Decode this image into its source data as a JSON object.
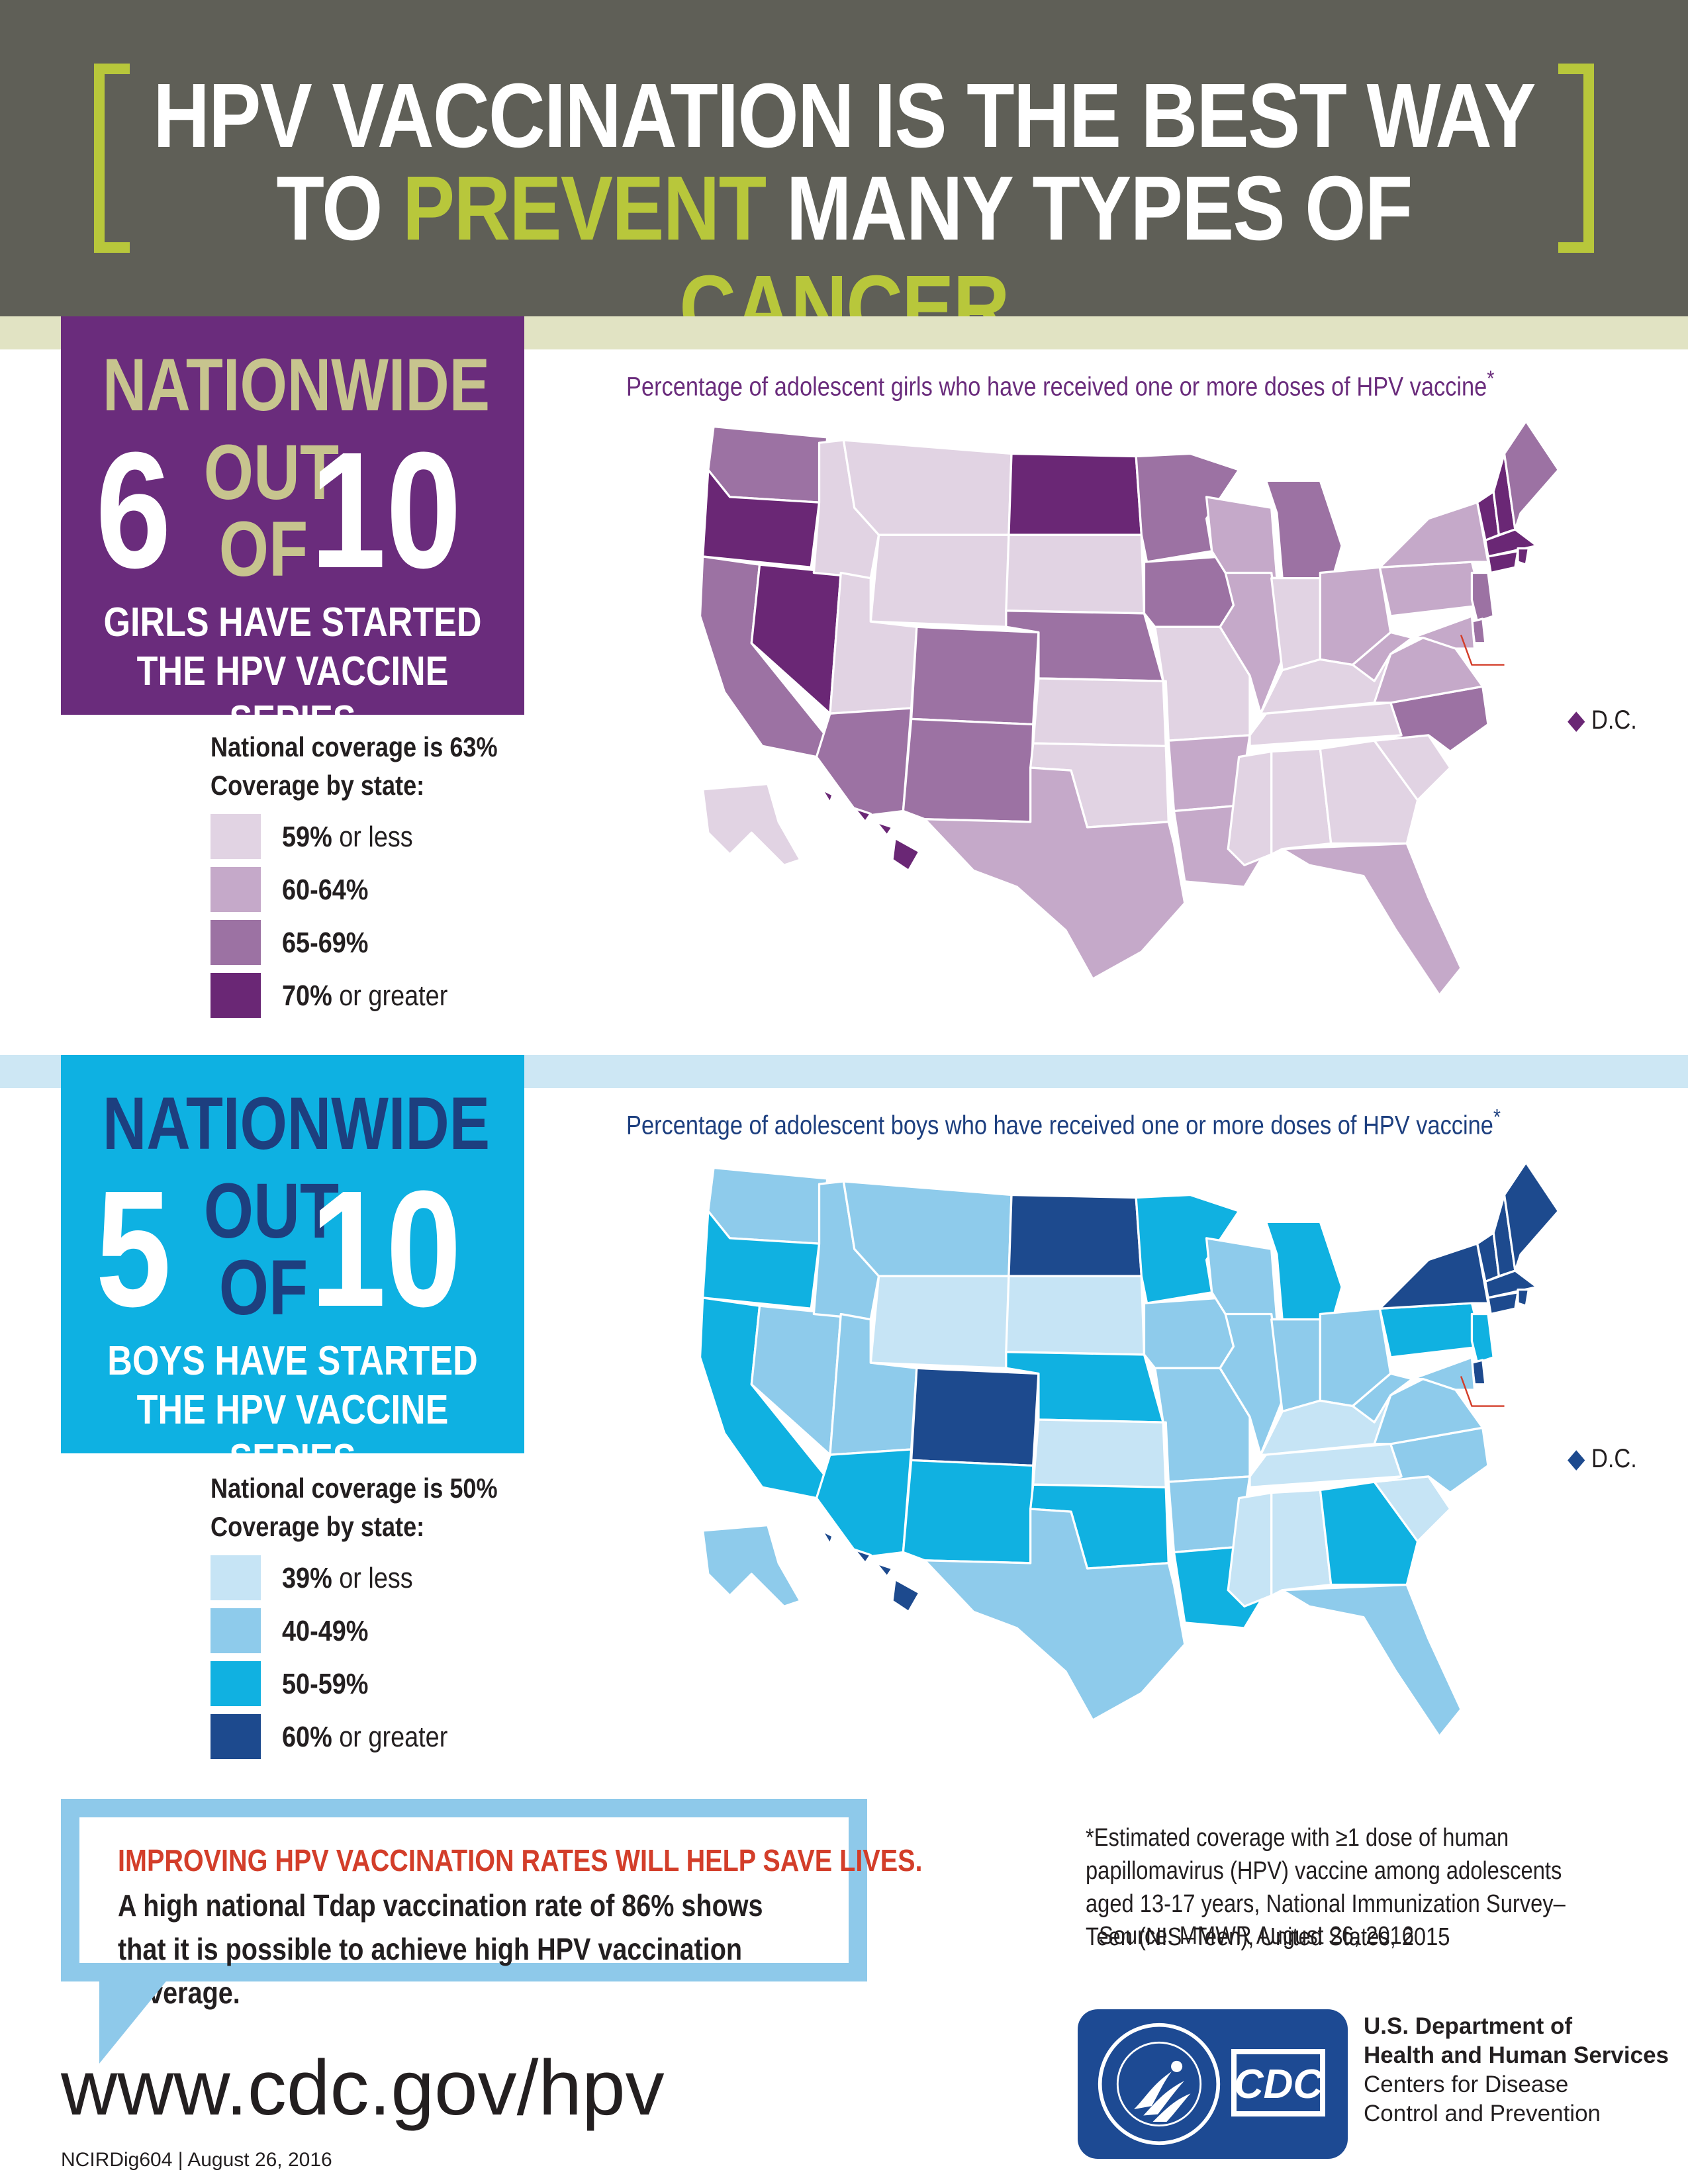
{
  "header": {
    "line1": "HPV VACCINATION IS THE BEST WAY",
    "line2_a": "TO ",
    "line2_b": "PREVENT",
    "line2_c": " MANY TYPES OF ",
    "line2_d": "CANCER"
  },
  "girls": {
    "nationwide": "NATIONWIDE",
    "num": "6",
    "out": "OUT",
    "of": "OF",
    "den": "10",
    "sub1": "GIRLS HAVE STARTED",
    "sub2": "THE HPV VACCINE SERIES",
    "coverage": "National coverage is 63%",
    "by_state": "Coverage by state:",
    "legend": [
      {
        "pct": "59%",
        "rest": " or less",
        "color": "#e1d3e3"
      },
      {
        "pct": "60-64%",
        "rest": "",
        "color": "#c5a9c9"
      },
      {
        "pct": "65-69%",
        "rest": "",
        "color": "#9c72a3"
      },
      {
        "pct": "70%",
        "rest": " or greater",
        "color": "#6a2775"
      }
    ],
    "map_caption": "Percentage of adolescent girls who have received one or more doses of HPV vaccine",
    "dc_label": "D.C."
  },
  "boys": {
    "nationwide": "NATIONWIDE",
    "num": "5",
    "out": "OUT",
    "of": "OF",
    "den": "10",
    "sub1": "BOYS HAVE STARTED",
    "sub2": "THE HPV VACCINE SERIES",
    "coverage": "National coverage is 50%",
    "by_state": "Coverage by state:",
    "legend": [
      {
        "pct": "39%",
        "rest": " or less",
        "color": "#c6e4f5"
      },
      {
        "pct": "40-49%",
        "rest": "",
        "color": "#8ecbeb"
      },
      {
        "pct": "50-59%",
        "rest": "",
        "color": "#10b1e1"
      },
      {
        "pct": "60%",
        "rest": " or greater",
        "color": "#1d4a8e"
      }
    ],
    "map_caption": "Percentage of adolescent boys who have received one or more doses of HPV vaccine",
    "dc_label": "D.C."
  },
  "map_data": {
    "girls_levels": {
      "WA": 2,
      "OR": 3,
      "CA": 2,
      "NV": 3,
      "ID": 0,
      "MT": 0,
      "WY": 0,
      "UT": 0,
      "AZ": 2,
      "CO": 2,
      "NM": 2,
      "ND": 3,
      "SD": 0,
      "NE": 2,
      "KS": 0,
      "OK": 0,
      "TX": 1,
      "MN": 2,
      "IA": 2,
      "MO": 0,
      "AR": 1,
      "LA": 1,
      "WI": 1,
      "IL": 1,
      "MI": 2,
      "IN": 0,
      "OH": 1,
      "KY": 0,
      "TN": 0,
      "MS": 0,
      "AL": 0,
      "GA": 0,
      "FL": 1,
      "SC": 0,
      "NC": 2,
      "VA": 1,
      "WV": 1,
      "PA": 1,
      "NY": 1,
      "VT": 3,
      "NH": 3,
      "ME": 2,
      "MA": 3,
      "RI": 3,
      "CT": 3,
      "NJ": 2,
      "DE": 2,
      "MD": 1,
      "DC": 3,
      "AK": 0,
      "HI": 3
    },
    "boys_levels": {
      "WA": 1,
      "OR": 2,
      "CA": 2,
      "NV": 1,
      "ID": 1,
      "MT": 1,
      "WY": 0,
      "UT": 1,
      "AZ": 2,
      "CO": 3,
      "NM": 2,
      "ND": 3,
      "SD": 0,
      "NE": 2,
      "KS": 0,
      "OK": 2,
      "TX": 1,
      "MN": 2,
      "IA": 1,
      "MO": 1,
      "AR": 1,
      "LA": 2,
      "WI": 1,
      "IL": 1,
      "MI": 2,
      "IN": 1,
      "OH": 1,
      "KY": 0,
      "TN": 0,
      "MS": 0,
      "AL": 0,
      "GA": 2,
      "FL": 1,
      "SC": 0,
      "NC": 1,
      "VA": 1,
      "WV": 1,
      "PA": 2,
      "NY": 3,
      "VT": 3,
      "NH": 3,
      "ME": 3,
      "MA": 3,
      "RI": 3,
      "CT": 3,
      "NJ": 2,
      "DE": 3,
      "MD": 1,
      "DC": 3,
      "AK": 1,
      "HI": 3
    }
  },
  "callout": {
    "headline": "IMPROVING HPV VACCINATION RATES WILL HELP SAVE LIVES.",
    "body": "A high national Tdap vaccination rate of 86% shows that it is possible to achieve high HPV vaccination coverage."
  },
  "footnote": "*Estimated coverage with ≥1 dose of human papillomavirus (HPV) vaccine among adolescents aged 13-17 years, National Immunization Survey–Teen (NIS–Teen), United States, 2015",
  "source": "Source: MMWR August 26, 2016",
  "url": "www.cdc.gov/hpv",
  "doc_id": "NCIRDig604 | August 26, 2016",
  "agency": {
    "line1": "U.S. Department of",
    "line2": "Health and Human Services",
    "line3": "Centers for Disease",
    "line4": "Control and Prevention"
  },
  "logos": {
    "cdc": "CDC",
    "hhs_seal_text": "DEPARTMENT OF HEALTH & HUMAN SERVICES · USA"
  }
}
